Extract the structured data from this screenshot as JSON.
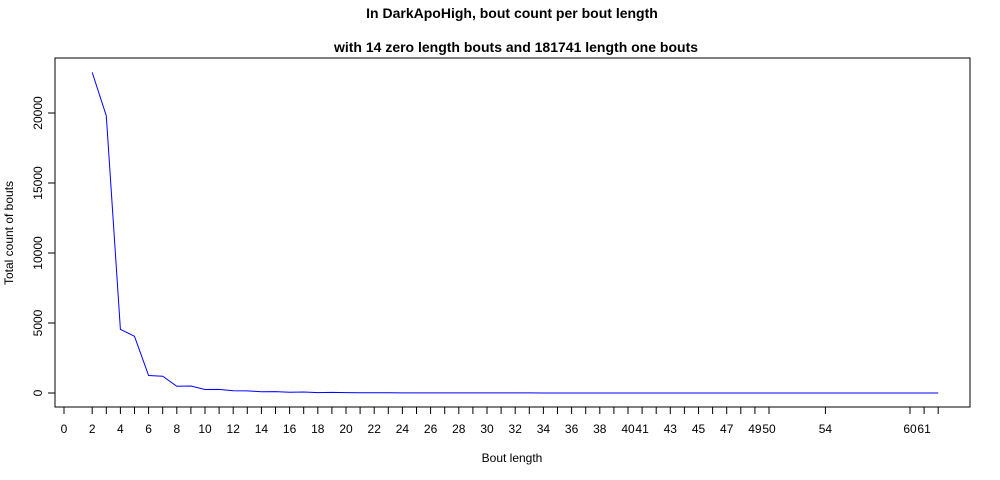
{
  "chart_data": {
    "type": "line",
    "title": "In DarkApoHigh, bout count per bout length",
    "subtitle": "with 14 zero length bouts and 181741 length one bouts",
    "xlabel": "Bout length",
    "ylabel": "Total count of bouts",
    "line_color": "#0000ff",
    "xlim": [
      0,
      62
    ],
    "ylim": [
      0,
      23000
    ],
    "y_ticks": [
      0,
      5000,
      10000,
      15000,
      20000
    ],
    "x_ticks": [
      0,
      2,
      3,
      4,
      5,
      6,
      7,
      8,
      9,
      10,
      11,
      12,
      13,
      14,
      15,
      16,
      17,
      18,
      19,
      20,
      21,
      22,
      23,
      24,
      25,
      26,
      27,
      28,
      29,
      30,
      31,
      32,
      33,
      34,
      35,
      36,
      37,
      38,
      39,
      40,
      41,
      42,
      43,
      44,
      45,
      46,
      47,
      48,
      49,
      50,
      54,
      60,
      61,
      62
    ],
    "x_tick_labels": [
      {
        "x": 0,
        "text": "0"
      },
      {
        "x": 2,
        "text": "2"
      },
      {
        "x": 4,
        "text": "4"
      },
      {
        "x": 6,
        "text": "6"
      },
      {
        "x": 8,
        "text": "8"
      },
      {
        "x": 10,
        "text": "10"
      },
      {
        "x": 12,
        "text": "12"
      },
      {
        "x": 14,
        "text": "14"
      },
      {
        "x": 16,
        "text": "16"
      },
      {
        "x": 18,
        "text": "18"
      },
      {
        "x": 20,
        "text": "20"
      },
      {
        "x": 22,
        "text": "22"
      },
      {
        "x": 24,
        "text": "24"
      },
      {
        "x": 26,
        "text": "26"
      },
      {
        "x": 28,
        "text": "28"
      },
      {
        "x": 30,
        "text": "30"
      },
      {
        "x": 32,
        "text": "32"
      },
      {
        "x": 34,
        "text": "34"
      },
      {
        "x": 36,
        "text": "36"
      },
      {
        "x": 38,
        "text": "38"
      },
      {
        "x": 40,
        "text": "40"
      },
      {
        "x": 41,
        "text": "41"
      },
      {
        "x": 43,
        "text": "43"
      },
      {
        "x": 45,
        "text": "45"
      },
      {
        "x": 47,
        "text": "47"
      },
      {
        "x": 49,
        "text": "49"
      },
      {
        "x": 50,
        "text": "50"
      },
      {
        "x": 54,
        "text": "54"
      },
      {
        "x": 60,
        "text": "60"
      },
      {
        "x": 61,
        "text": "61"
      }
    ],
    "x": [
      2,
      3,
      4,
      5,
      6,
      7,
      8,
      9,
      10,
      11,
      12,
      13,
      14,
      15,
      16,
      17,
      18,
      19,
      20,
      21,
      22,
      23,
      24,
      25,
      26,
      27,
      28,
      29,
      30,
      31,
      32,
      33,
      34,
      35,
      36,
      37,
      38,
      39,
      40,
      41,
      42,
      43,
      44,
      45,
      46,
      47,
      48,
      49,
      50,
      54,
      60,
      61,
      62
    ],
    "y": [
      22900,
      19800,
      4550,
      4050,
      1250,
      1200,
      480,
      500,
      250,
      260,
      160,
      150,
      90,
      100,
      50,
      70,
      30,
      40,
      25,
      20,
      15,
      15,
      10,
      10,
      8,
      8,
      6,
      6,
      5,
      5,
      4,
      4,
      3,
      3,
      3,
      3,
      2,
      2,
      2,
      2,
      2,
      2,
      1,
      1,
      1,
      1,
      1,
      1,
      1,
      1,
      1,
      1,
      1
    ],
    "grid": false,
    "legend": "none"
  }
}
